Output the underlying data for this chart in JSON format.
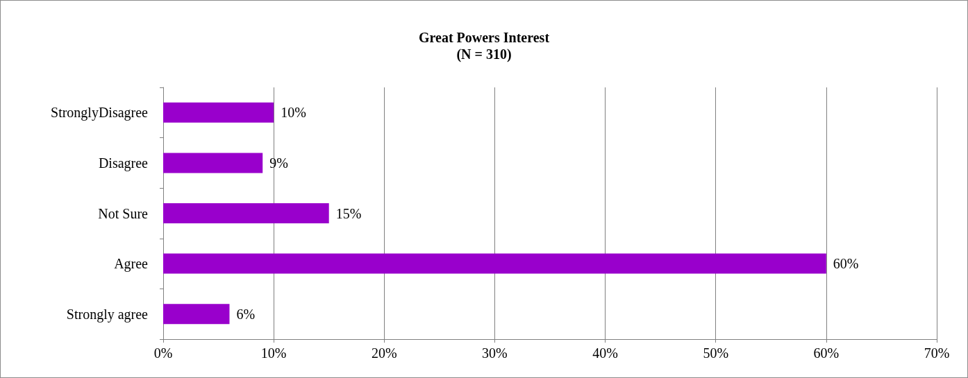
{
  "chart_data": {
    "type": "bar",
    "orientation": "horizontal",
    "title": "Great Powers Interest",
    "subtitle": "(N = 310)",
    "categories": [
      "StronglyDisagree",
      "Disagree",
      "Not Sure",
      "Agree",
      "Strongly agree"
    ],
    "values": [
      10,
      9,
      15,
      60,
      6
    ],
    "color": "#9900cc",
    "value_labels": [
      "10%",
      "9%",
      "15%",
      "60%",
      "6%"
    ],
    "xlim": [
      0,
      70
    ],
    "xticks": [
      {
        "value": 0,
        "label": "0%"
      },
      {
        "value": 10,
        "label": "10%"
      },
      {
        "value": 20,
        "label": "20%"
      },
      {
        "value": 30,
        "label": "30%"
      },
      {
        "value": 40,
        "label": "40%"
      },
      {
        "value": 50,
        "label": "50%"
      },
      {
        "value": 60,
        "label": "60%"
      },
      {
        "value": 70,
        "label": "70%"
      }
    ],
    "grid": "x"
  }
}
